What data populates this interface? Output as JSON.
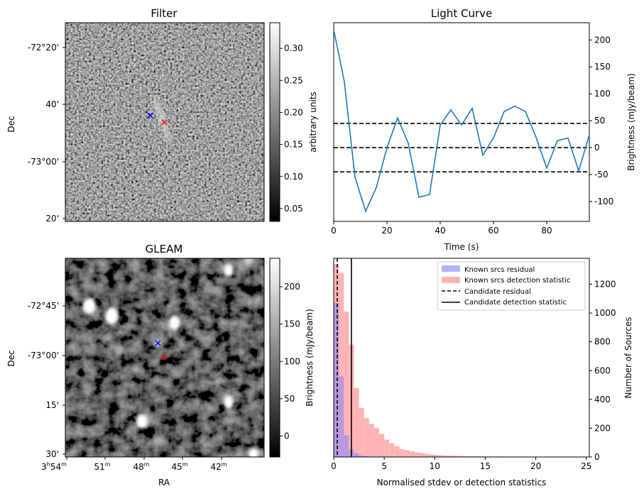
{
  "colors": {
    "line": "#1f77b4",
    "hist_known_residual": "#b3b3ff",
    "hist_known_detection": "#ffb3b3",
    "hist_overlap": "#c080c0",
    "cross_blue": "#0000ff",
    "cross_red": "#ff0000"
  },
  "chart_data": [
    {
      "type": "heatmap",
      "title": "Filter",
      "ylabel": "Dec",
      "ytick_labels": [
        "-72°20'",
        "40'",
        "-73°00'",
        "20'"
      ],
      "colorbar": {
        "label": "arbitrary units",
        "ticks": [
          0.05,
          0.1,
          0.15,
          0.2,
          0.25,
          0.3
        ],
        "tick_labels": [
          "0.05",
          "0.10",
          "0.15",
          "0.20",
          "0.25",
          "0.30"
        ],
        "range": [
          0.03,
          0.34
        ]
      }
    },
    {
      "type": "line",
      "title": "Light Curve",
      "xlabel": "Time (s)",
      "ylabel": "Brightness (mJy/beam)",
      "xlim": [
        0,
        96
      ],
      "ylim": [
        -137,
        232
      ],
      "xticks": [
        0,
        20,
        40,
        60,
        80
      ],
      "yticks": [
        -100,
        -50,
        0,
        50,
        100,
        150,
        200
      ],
      "x": [
        0,
        4,
        8,
        12,
        16,
        20,
        24,
        28,
        32,
        36,
        40,
        44,
        48,
        52,
        56,
        60,
        64,
        68,
        72,
        76,
        80,
        84,
        88,
        92,
        96
      ],
      "y": [
        219,
        122,
        -55,
        -118,
        -74,
        0,
        55,
        8,
        -92,
        -87,
        42,
        70,
        42,
        73,
        -14,
        18,
        67,
        77,
        67,
        19,
        -38,
        13,
        18,
        -43,
        24
      ],
      "hlines": [
        45,
        0,
        -45
      ]
    },
    {
      "type": "heatmap",
      "title": "GLEAM",
      "xlabel": "RA",
      "ylabel": "Dec",
      "ytick_labels": [
        "-72°45'",
        "-73°00'",
        "15'",
        "30'"
      ],
      "xtick_labels": [
        "54",
        "51",
        "48",
        "45",
        "42"
      ],
      "xtick_prefix": "3",
      "xtick_sup_h": "h",
      "xtick_sup_m": "m",
      "colorbar": {
        "label": "Brightness (mJy/beam)",
        "ticks": [
          0,
          50,
          100,
          150,
          200
        ],
        "tick_labels": [
          "0",
          "50",
          "100",
          "150",
          "200"
        ],
        "range": [
          -28,
          238
        ]
      }
    },
    {
      "type": "bar",
      "xlabel": "Normalised stdev or detection statistics",
      "ylabel": "Number of Sources",
      "xlim": [
        0,
        25.3
      ],
      "ylim": [
        0,
        1380
      ],
      "xticks": [
        0,
        5,
        10,
        15,
        20,
        25
      ],
      "yticks": [
        0,
        200,
        400,
        600,
        800,
        1000,
        1200
      ],
      "bin_width": 0.5,
      "series": [
        {
          "name": "Known srcs residual",
          "bin_starts": [
            0,
            0.5,
            1.0,
            1.5,
            2.0,
            2.5,
            3.0
          ],
          "values": [
            1070,
            560,
            150,
            55,
            25,
            10,
            5
          ]
        },
        {
          "name": "Known srcs detection statistic",
          "bin_starts": [
            0,
            0.5,
            1.0,
            1.5,
            2.0,
            2.5,
            3.0,
            3.5,
            4.0,
            4.5,
            5.0,
            5.5,
            6.0,
            6.5,
            7.0,
            7.5,
            8.0,
            8.5,
            9.0,
            9.5,
            10.0,
            10.5,
            11.0,
            11.5,
            12.0,
            12.5,
            13.0,
            13.5,
            14.0,
            14.5,
            15.0,
            15.5,
            16.0,
            16.5,
            17.0,
            18.0,
            19.0,
            20.0,
            21.0,
            22.0,
            23.5
          ],
          "values": [
            1340,
            1280,
            1010,
            780,
            480,
            340,
            270,
            230,
            200,
            160,
            120,
            95,
            75,
            55,
            48,
            40,
            32,
            28,
            22,
            18,
            14,
            12,
            10,
            9,
            8,
            7,
            6,
            5,
            5,
            4,
            4,
            3,
            3,
            3,
            2,
            2,
            2,
            1,
            1,
            1,
            2
          ]
        }
      ],
      "vlines": [
        {
          "name": "Candidate residual",
          "x": 0.35,
          "style": "dashed"
        },
        {
          "name": "Candidate detection statistic",
          "x": 1.75,
          "style": "solid"
        }
      ]
    }
  ]
}
